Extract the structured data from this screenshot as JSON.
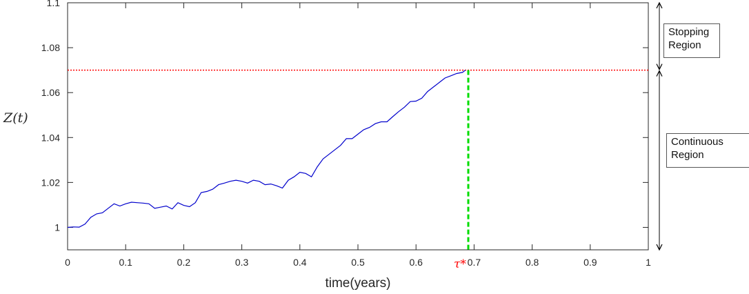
{
  "chart_data": {
    "type": "line",
    "xlabel": "time(years)",
    "ylabel": "Z(t)",
    "xlim": [
      0,
      1
    ],
    "ylim": [
      0.99,
      1.1
    ],
    "x_ticks": [
      "0",
      "0.1",
      "0.2",
      "0.3",
      "0.4",
      "0.5",
      "0.6",
      "0.7",
      "0.8",
      "0.9",
      "1"
    ],
    "y_ticks": [
      "1",
      "1.02",
      "1.04",
      "1.06",
      "1.08",
      "1.1"
    ],
    "x_tick_values": [
      0,
      0.1,
      0.2,
      0.3,
      0.4,
      0.5,
      0.6,
      0.7,
      0.8,
      0.9,
      1
    ],
    "y_tick_values": [
      1,
      1.02,
      1.04,
      1.06,
      1.08,
      1.1
    ],
    "series": [
      {
        "color": "#0000cc",
        "x": [
          0,
          0.01,
          0.02,
          0.03,
          0.04,
          0.05,
          0.06,
          0.07,
          0.08,
          0.09,
          0.1,
          0.11,
          0.12,
          0.13,
          0.14,
          0.15,
          0.16,
          0.17,
          0.18,
          0.19,
          0.2,
          0.21,
          0.22,
          0.23,
          0.24,
          0.25,
          0.26,
          0.27,
          0.28,
          0.29,
          0.3,
          0.31,
          0.32,
          0.33,
          0.34,
          0.35,
          0.36,
          0.37,
          0.38,
          0.39,
          0.4,
          0.41,
          0.42,
          0.43,
          0.44,
          0.45,
          0.46,
          0.47,
          0.48,
          0.49,
          0.5,
          0.51,
          0.52,
          0.53,
          0.54,
          0.55,
          0.56,
          0.57,
          0.58,
          0.59,
          0.6,
          0.61,
          0.62,
          0.63,
          0.64,
          0.65,
          0.66,
          0.67,
          0.68,
          0.685
        ],
        "y": [
          1.0,
          1.0002,
          1.0001,
          1.0015,
          1.0045,
          1.006,
          1.0065,
          1.0085,
          1.0105,
          1.0095,
          1.0105,
          1.0112,
          1.011,
          1.0108,
          1.0105,
          1.0085,
          1.009,
          1.0095,
          1.0082,
          1.011,
          1.0098,
          1.0092,
          1.011,
          1.0155,
          1.016,
          1.017,
          1.019,
          1.0197,
          1.0205,
          1.021,
          1.0205,
          1.0197,
          1.021,
          1.0205,
          1.019,
          1.0193,
          1.0185,
          1.0175,
          1.021,
          1.0225,
          1.0245,
          1.024,
          1.0225,
          1.027,
          1.0305,
          1.0325,
          1.0345,
          1.0365,
          1.0395,
          1.0395,
          1.0415,
          1.0435,
          1.0445,
          1.0462,
          1.047,
          1.047,
          1.0493,
          1.0515,
          1.0535,
          1.056,
          1.0562,
          1.0575,
          1.0605,
          1.0625,
          1.0645,
          1.0665,
          1.0675,
          1.0685,
          1.069,
          1.07
        ]
      }
    ],
    "threshold": {
      "y": 1.07,
      "color": "#ff0000",
      "style": "dotted"
    },
    "stopping_time": {
      "x": 0.69,
      "color": "#00dd00",
      "style": "dashed",
      "label": "τ*"
    },
    "grid": false,
    "legend": "none",
    "regions": [
      {
        "label": "Stopping\nRegion",
        "y_from": 1.07,
        "y_to": 1.1
      },
      {
        "label": "Continuous\nRegion",
        "y_from": 0.99,
        "y_to": 1.07
      }
    ]
  }
}
